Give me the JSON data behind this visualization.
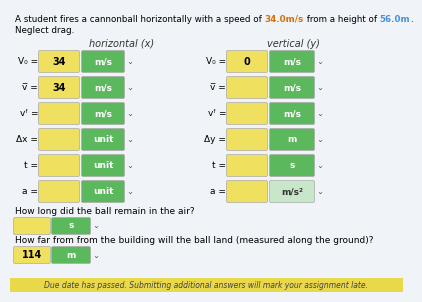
{
  "title_parts": [
    [
      "A student fires a cannonball horizontally with a speed of ",
      "black",
      "normal"
    ],
    [
      "34.0m/s",
      "#d97000",
      "bold"
    ],
    [
      " from a height of ",
      "black",
      "normal"
    ],
    [
      "56.0m",
      "#4a90d9",
      "bold"
    ],
    [
      ".",
      "black",
      "normal"
    ]
  ],
  "title_line2": "Neglect drag.",
  "col_headers": [
    "horizontal (x)",
    "vertical (y)"
  ],
  "rows": [
    {
      "label_left": "V₀ =",
      "val_left": "34",
      "unit_left": "m/s",
      "label_right": "V₀ =",
      "val_right": "0",
      "unit_right": "m/s",
      "light_unit_right": false
    },
    {
      "label_left": "v̅ =",
      "val_left": "34",
      "unit_left": "m/s",
      "label_right": "v̅ =",
      "val_right": "",
      "unit_right": "m/s",
      "light_unit_right": false
    },
    {
      "label_left": "vᶠ =",
      "val_left": "",
      "unit_left": "m/s",
      "label_right": "vᶠ =",
      "val_right": "",
      "unit_right": "m/s",
      "light_unit_right": false
    },
    {
      "label_left": "Δx =",
      "val_left": "",
      "unit_left": "unit",
      "label_right": "Δy =",
      "val_right": "",
      "unit_right": "m",
      "light_unit_right": false
    },
    {
      "label_left": "t =",
      "val_left": "",
      "unit_left": "unit",
      "label_right": "t =",
      "val_right": "",
      "unit_right": "s",
      "light_unit_right": false
    },
    {
      "label_left": "a =",
      "val_left": "",
      "unit_left": "unit",
      "label_right": "a =",
      "val_right": "",
      "unit_right": "m/s²",
      "light_unit_right": true
    }
  ],
  "q1_text": "How long did the ball remain in the air?",
  "q1_val": "",
  "q1_unit": "s",
  "q2_text": "How far from from the building will the ball land (measured along the ground)?",
  "q2_val": "114",
  "q2_unit": "m",
  "footer": "Due date has passed. Submitting additional answers will mark your assignment late.",
  "bg_color": "#f0f4f8",
  "green": "#5cb85c",
  "light_green": "#c8e6c9",
  "yellow": "#f0e060",
  "footer_yellow": "#e8d84a",
  "title_color_speed": "#d97000",
  "title_color_height": "#4a90d9"
}
